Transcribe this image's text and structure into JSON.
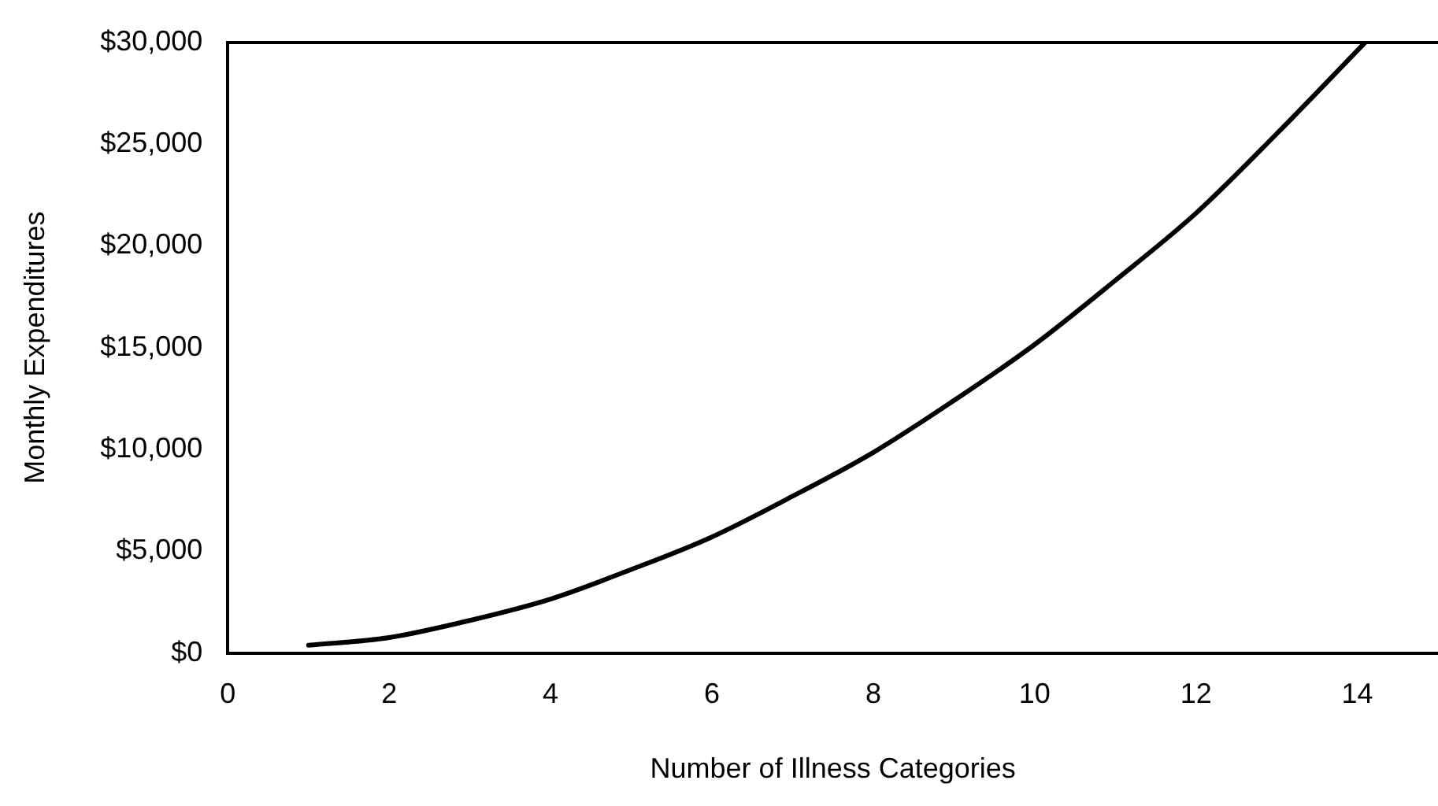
{
  "chart_data": {
    "type": "line",
    "xlabel": "Number of Illness Categories",
    "ylabel": "Monthly Expenditures",
    "x": [
      1,
      2,
      3,
      4,
      5,
      6,
      7,
      8,
      9,
      10,
      11,
      12,
      13,
      14.1
    ],
    "series": [
      {
        "color": "#000000",
        "values": [
          380,
          760,
          1600,
          2650,
          4100,
          5700,
          7700,
          9850,
          12400,
          15150,
          18300,
          21600,
          25500,
          30000
        ]
      }
    ],
    "xlim": [
      0,
      15
    ],
    "xticks": [
      0,
      2,
      4,
      6,
      8,
      10,
      12,
      14
    ],
    "ylim": [
      0,
      30000
    ],
    "yticks": [
      {
        "value": 0,
        "label": "$0"
      },
      {
        "value": 5000,
        "label": "$5,000"
      },
      {
        "value": 10000,
        "label": "$10,000"
      },
      {
        "value": 15000,
        "label": "$15,000"
      },
      {
        "value": 20000,
        "label": "$20,000"
      },
      {
        "value": 25000,
        "label": "$25,000"
      },
      {
        "value": 30000,
        "label": "$30,000"
      }
    ],
    "grid": false,
    "legend": false,
    "marker": "none",
    "line_style": "solid"
  }
}
